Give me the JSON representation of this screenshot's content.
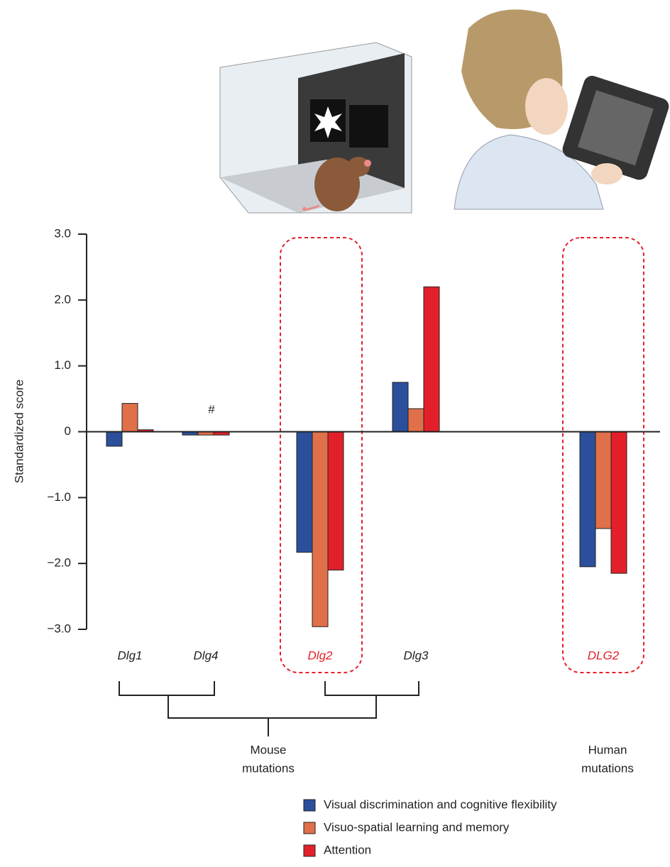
{
  "chart_data": {
    "type": "bar",
    "y_label": "Standardized score",
    "categories": [
      "Dlg1",
      "Dlg4",
      "Dlg2",
      "Dlg3",
      "DLG2"
    ],
    "category_colors": [
      "#222222",
      "#222222",
      "#e3202a",
      "#222222",
      "#e3202a"
    ],
    "series": [
      {
        "name": "Visual discrimination and cognitive flexibility",
        "color": "#2b4f9b",
        "values": [
          -0.22,
          -0.05,
          -1.83,
          0.75,
          -2.05
        ]
      },
      {
        "name": "Visuo-spatial learning and memory",
        "color": "#e0704a",
        "values": [
          0.43,
          -0.05,
          -2.96,
          0.35,
          -1.47
        ]
      },
      {
        "name": "Attention",
        "color": "#e3202a",
        "values": [
          0.03,
          -0.05,
          -2.1,
          2.2,
          -2.15
        ]
      }
    ],
    "ylim": [
      -3,
      3
    ],
    "yticks": [
      {
        "value": -3,
        "label": "−3.0"
      },
      {
        "value": -2,
        "label": "−2.0"
      },
      {
        "value": -1,
        "label": "−1.0"
      },
      0,
      {
        "value": 1,
        "label": "1.0"
      },
      {
        "value": 2,
        "label": "2.0"
      },
      {
        "value": 3,
        "label": "3.0"
      }
    ],
    "annotations": {
      "hash": "#",
      "mouse_group": [
        "Mouse",
        "mutations"
      ],
      "human_group": [
        "Human",
        "mutations"
      ]
    }
  }
}
